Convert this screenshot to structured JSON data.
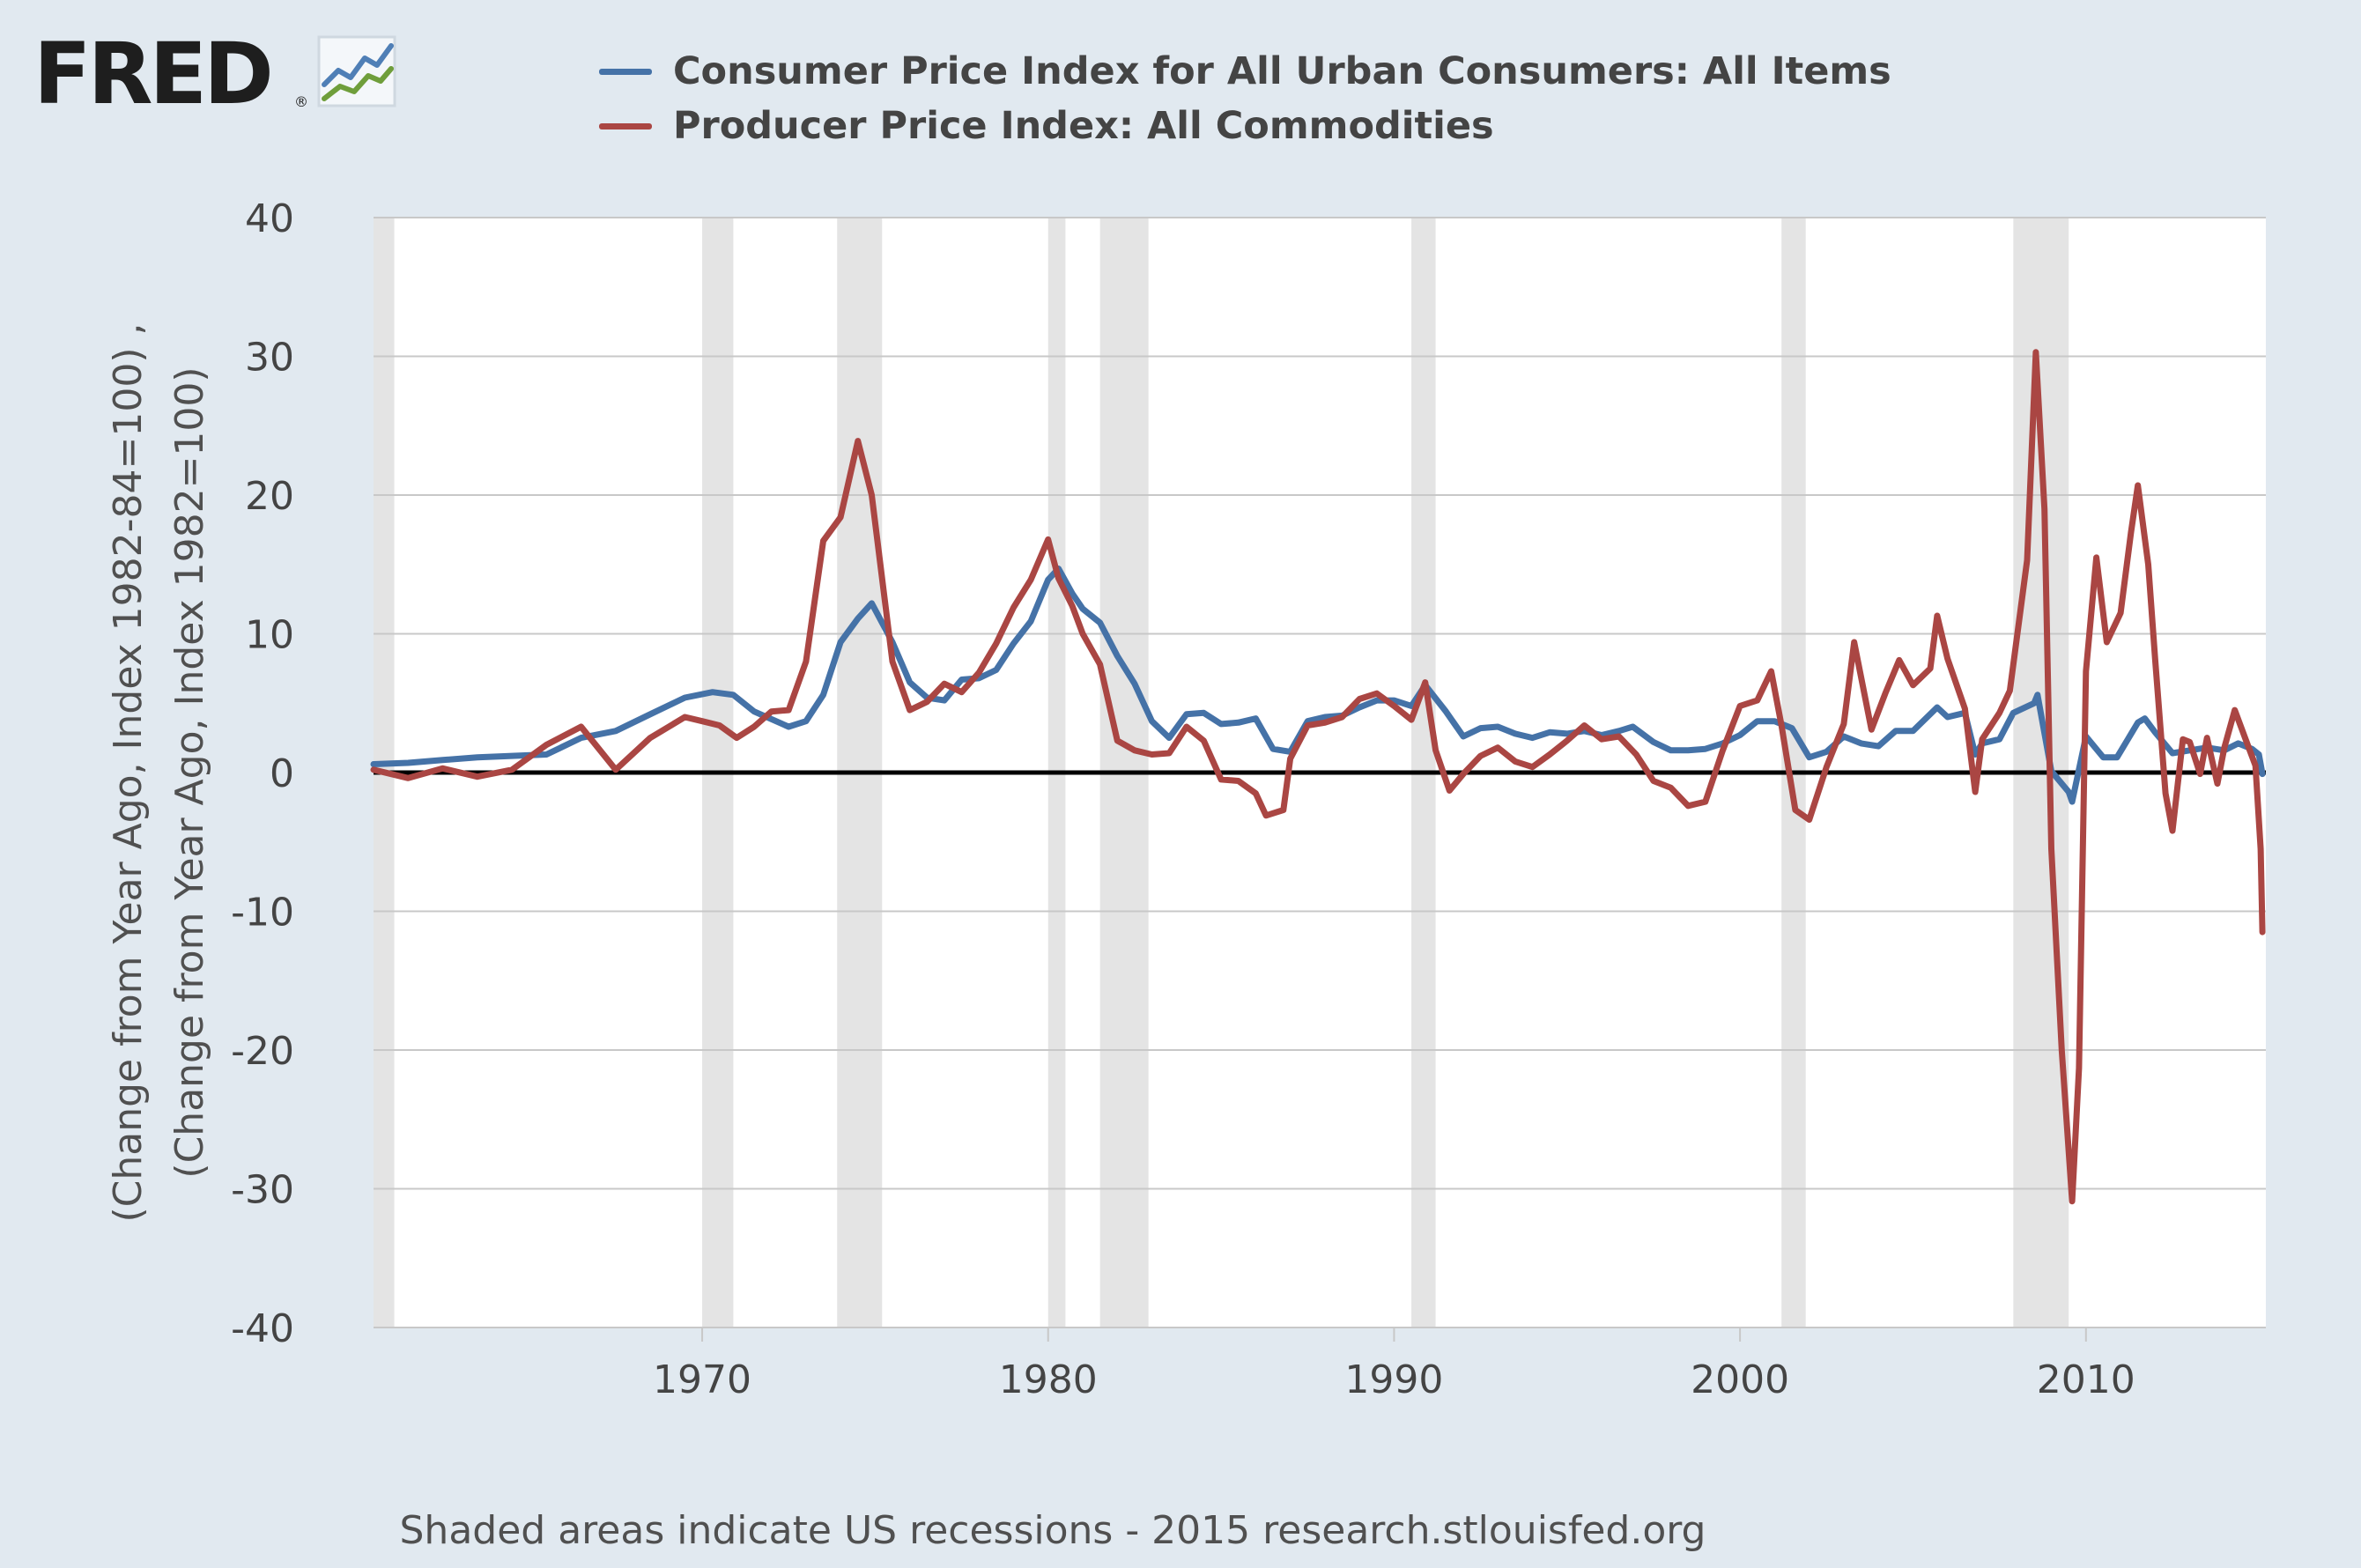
{
  "logo": {
    "text": "FRED",
    "registered": "®"
  },
  "footer": {
    "note": "Shaded areas indicate US recessions - 2015 research.stlouisfed.org"
  },
  "colors": {
    "background": "#e1e9f0",
    "plot_background": "#ffffff",
    "grid": "#c8c8c8",
    "recession_shade": "#e4e4e4",
    "zero_line": "#000000"
  },
  "chart_data": {
    "type": "line",
    "title": "",
    "xlabel": "",
    "ylabel_lines": [
      "(Change from Year Ago, Index 1982-84=100) ,",
      "(Change from Year Ago, Index 1982=100)"
    ],
    "ylim": [
      -40,
      40
    ],
    "yticks": [
      40,
      30,
      20,
      10,
      0,
      -10,
      -20,
      -30,
      -40
    ],
    "xlim": [
      1960.5,
      2015.2
    ],
    "xticks": [
      1970,
      1980,
      1990,
      2000,
      2010
    ],
    "grid": true,
    "legend_position": "top",
    "recessions": [
      [
        1960.4,
        1961.1
      ],
      [
        1970.0,
        1970.9
      ],
      [
        1973.9,
        1975.2
      ],
      [
        1980.0,
        1980.5
      ],
      [
        1981.5,
        1982.9
      ],
      [
        1990.5,
        1991.2
      ],
      [
        2001.2,
        2001.9
      ],
      [
        2007.9,
        2009.5
      ]
    ],
    "series": [
      {
        "name": "Consumer Price Index for All Urban Consumers: All Items",
        "color": "#4572a7",
        "points": [
          [
            1960.5,
            0.6
          ],
          [
            1961.5,
            0.7
          ],
          [
            1962.5,
            0.9
          ],
          [
            1963.5,
            1.1
          ],
          [
            1964.5,
            1.2
          ],
          [
            1965.5,
            1.3
          ],
          [
            1966.5,
            2.5
          ],
          [
            1967.5,
            3.0
          ],
          [
            1968.5,
            4.2
          ],
          [
            1969.5,
            5.4
          ],
          [
            1970.3,
            5.8
          ],
          [
            1970.9,
            5.6
          ],
          [
            1971.5,
            4.4
          ],
          [
            1972.5,
            3.3
          ],
          [
            1973.0,
            3.7
          ],
          [
            1973.5,
            5.6
          ],
          [
            1974.0,
            9.4
          ],
          [
            1974.5,
            11.1
          ],
          [
            1974.9,
            12.2
          ],
          [
            1975.5,
            9.4
          ],
          [
            1976.0,
            6.5
          ],
          [
            1976.5,
            5.4
          ],
          [
            1977.0,
            5.2
          ],
          [
            1977.5,
            6.7
          ],
          [
            1978.0,
            6.8
          ],
          [
            1978.5,
            7.4
          ],
          [
            1979.0,
            9.3
          ],
          [
            1979.5,
            10.9
          ],
          [
            1980.0,
            13.9
          ],
          [
            1980.3,
            14.7
          ],
          [
            1980.7,
            12.9
          ],
          [
            1981.0,
            11.8
          ],
          [
            1981.5,
            10.8
          ],
          [
            1982.0,
            8.4
          ],
          [
            1982.5,
            6.4
          ],
          [
            1983.0,
            3.7
          ],
          [
            1983.5,
            2.5
          ],
          [
            1984.0,
            4.2
          ],
          [
            1984.5,
            4.3
          ],
          [
            1985.0,
            3.5
          ],
          [
            1985.5,
            3.6
          ],
          [
            1986.0,
            3.9
          ],
          [
            1986.5,
            1.7
          ],
          [
            1987.0,
            1.5
          ],
          [
            1987.5,
            3.7
          ],
          [
            1988.0,
            4.0
          ],
          [
            1988.5,
            4.1
          ],
          [
            1989.0,
            4.7
          ],
          [
            1989.5,
            5.2
          ],
          [
            1990.0,
            5.2
          ],
          [
            1990.5,
            4.8
          ],
          [
            1990.9,
            6.3
          ],
          [
            1991.5,
            4.4
          ],
          [
            1992.0,
            2.6
          ],
          [
            1992.5,
            3.2
          ],
          [
            1993.0,
            3.3
          ],
          [
            1993.5,
            2.8
          ],
          [
            1994.0,
            2.5
          ],
          [
            1994.5,
            2.9
          ],
          [
            1995.0,
            2.8
          ],
          [
            1995.5,
            3.0
          ],
          [
            1996.0,
            2.7
          ],
          [
            1996.5,
            3.0
          ],
          [
            1996.9,
            3.3
          ],
          [
            1997.5,
            2.2
          ],
          [
            1998.0,
            1.6
          ],
          [
            1998.5,
            1.6
          ],
          [
            1999.0,
            1.7
          ],
          [
            1999.5,
            2.1
          ],
          [
            2000.0,
            2.7
          ],
          [
            2000.5,
            3.7
          ],
          [
            2001.0,
            3.7
          ],
          [
            2001.5,
            3.2
          ],
          [
            2002.0,
            1.1
          ],
          [
            2002.5,
            1.5
          ],
          [
            2003.0,
            2.6
          ],
          [
            2003.5,
            2.1
          ],
          [
            2004.0,
            1.9
          ],
          [
            2004.5,
            3.0
          ],
          [
            2005.0,
            3.0
          ],
          [
            2005.7,
            4.7
          ],
          [
            2006.0,
            4.0
          ],
          [
            2006.5,
            4.3
          ],
          [
            2006.8,
            1.3
          ],
          [
            2007.0,
            2.1
          ],
          [
            2007.5,
            2.4
          ],
          [
            2007.9,
            4.3
          ],
          [
            2008.5,
            5.0
          ],
          [
            2008.6,
            5.6
          ],
          [
            2009.0,
            0.1
          ],
          [
            2009.5,
            -1.4
          ],
          [
            2009.6,
            -2.1
          ],
          [
            2010.0,
            2.6
          ],
          [
            2010.5,
            1.1
          ],
          [
            2010.9,
            1.1
          ],
          [
            2011.5,
            3.6
          ],
          [
            2011.7,
            3.9
          ],
          [
            2012.0,
            2.9
          ],
          [
            2012.5,
            1.4
          ],
          [
            2013.0,
            1.6
          ],
          [
            2013.5,
            1.8
          ],
          [
            2014.0,
            1.6
          ],
          [
            2014.4,
            2.1
          ],
          [
            2014.8,
            1.7
          ],
          [
            2015.0,
            1.3
          ],
          [
            2015.1,
            -0.1
          ]
        ]
      },
      {
        "name": "Producer Price Index: All Commodities",
        "color": "#aa4643",
        "points": [
          [
            1960.5,
            0.2
          ],
          [
            1961.5,
            -0.4
          ],
          [
            1962.5,
            0.3
          ],
          [
            1963.5,
            -0.3
          ],
          [
            1964.5,
            0.2
          ],
          [
            1965.5,
            2.0
          ],
          [
            1966.5,
            3.3
          ],
          [
            1967.5,
            0.2
          ],
          [
            1968.5,
            2.5
          ],
          [
            1969.5,
            4.0
          ],
          [
            1970.0,
            3.7
          ],
          [
            1970.5,
            3.4
          ],
          [
            1971.0,
            2.5
          ],
          [
            1971.5,
            3.3
          ],
          [
            1972.0,
            4.4
          ],
          [
            1972.5,
            4.5
          ],
          [
            1973.0,
            8.0
          ],
          [
            1973.5,
            16.7
          ],
          [
            1974.0,
            18.4
          ],
          [
            1974.5,
            23.9
          ],
          [
            1974.9,
            20.0
          ],
          [
            1975.5,
            8.0
          ],
          [
            1976.0,
            4.5
          ],
          [
            1976.5,
            5.1
          ],
          [
            1977.0,
            6.4
          ],
          [
            1977.5,
            5.8
          ],
          [
            1978.0,
            7.2
          ],
          [
            1978.5,
            9.3
          ],
          [
            1979.0,
            11.9
          ],
          [
            1979.5,
            13.9
          ],
          [
            1980.0,
            16.8
          ],
          [
            1980.3,
            14.0
          ],
          [
            1980.7,
            12.0
          ],
          [
            1981.0,
            10.0
          ],
          [
            1981.5,
            7.8
          ],
          [
            1982.0,
            2.3
          ],
          [
            1982.5,
            1.6
          ],
          [
            1983.0,
            1.3
          ],
          [
            1983.5,
            1.4
          ],
          [
            1984.0,
            3.3
          ],
          [
            1984.5,
            2.3
          ],
          [
            1985.0,
            -0.5
          ],
          [
            1985.5,
            -0.6
          ],
          [
            1986.0,
            -1.5
          ],
          [
            1986.3,
            -3.1
          ],
          [
            1986.8,
            -2.7
          ],
          [
            1987.0,
            1.0
          ],
          [
            1987.5,
            3.4
          ],
          [
            1988.0,
            3.6
          ],
          [
            1988.5,
            4.0
          ],
          [
            1989.0,
            5.3
          ],
          [
            1989.5,
            5.7
          ],
          [
            1990.0,
            4.8
          ],
          [
            1990.5,
            3.8
          ],
          [
            1990.9,
            6.5
          ],
          [
            1991.2,
            1.6
          ],
          [
            1991.6,
            -1.3
          ],
          [
            1992.0,
            -0.1
          ],
          [
            1992.5,
            1.2
          ],
          [
            1993.0,
            1.8
          ],
          [
            1993.5,
            0.8
          ],
          [
            1994.0,
            0.4
          ],
          [
            1994.5,
            1.3
          ],
          [
            1995.0,
            2.3
          ],
          [
            1995.5,
            3.4
          ],
          [
            1996.0,
            2.4
          ],
          [
            1996.5,
            2.6
          ],
          [
            1997.0,
            1.3
          ],
          [
            1997.5,
            -0.6
          ],
          [
            1998.0,
            -1.1
          ],
          [
            1998.5,
            -2.4
          ],
          [
            1999.0,
            -2.1
          ],
          [
            1999.5,
            1.6
          ],
          [
            2000.0,
            4.8
          ],
          [
            2000.5,
            5.2
          ],
          [
            2000.9,
            7.3
          ],
          [
            2001.2,
            3.4
          ],
          [
            2001.6,
            -2.7
          ],
          [
            2002.0,
            -3.4
          ],
          [
            2002.5,
            0.4
          ],
          [
            2003.0,
            3.5
          ],
          [
            2003.3,
            9.4
          ],
          [
            2003.8,
            3.1
          ],
          [
            2004.2,
            5.7
          ],
          [
            2004.6,
            8.1
          ],
          [
            2005.0,
            6.3
          ],
          [
            2005.5,
            7.5
          ],
          [
            2005.7,
            11.3
          ],
          [
            2006.0,
            8.2
          ],
          [
            2006.5,
            4.6
          ],
          [
            2006.8,
            -1.4
          ],
          [
            2007.0,
            2.4
          ],
          [
            2007.5,
            4.3
          ],
          [
            2007.8,
            5.9
          ],
          [
            2008.3,
            15.3
          ],
          [
            2008.55,
            30.3
          ],
          [
            2008.8,
            19.0
          ],
          [
            2009.0,
            -5.5
          ],
          [
            2009.3,
            -20.0
          ],
          [
            2009.6,
            -30.9
          ],
          [
            2009.8,
            -21.3
          ],
          [
            2010.0,
            7.3
          ],
          [
            2010.3,
            15.5
          ],
          [
            2010.6,
            9.4
          ],
          [
            2011.0,
            11.5
          ],
          [
            2011.3,
            17.3
          ],
          [
            2011.5,
            20.7
          ],
          [
            2011.8,
            15.0
          ],
          [
            2012.0,
            8.2
          ],
          [
            2012.3,
            -1.5
          ],
          [
            2012.5,
            -4.2
          ],
          [
            2012.8,
            2.4
          ],
          [
            2013.0,
            2.2
          ],
          [
            2013.3,
            -0.1
          ],
          [
            2013.5,
            2.5
          ],
          [
            2013.8,
            -0.8
          ],
          [
            2014.0,
            1.8
          ],
          [
            2014.3,
            4.5
          ],
          [
            2014.6,
            2.5
          ],
          [
            2014.9,
            0.5
          ],
          [
            2015.05,
            -5.5
          ],
          [
            2015.1,
            -11.5
          ]
        ]
      }
    ]
  }
}
